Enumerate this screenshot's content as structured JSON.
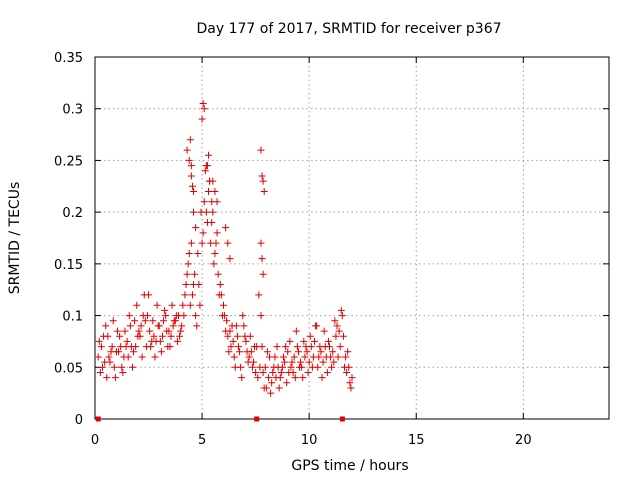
{
  "chart_data": {
    "type": "scatter",
    "title": "Day 177 of 2017, SRMTID for receiver p367",
    "xlabel": "GPS time / hours",
    "ylabel": "SRMTID / TECUs",
    "xlim": [
      0,
      24
    ],
    "ylim": [
      0,
      0.35
    ],
    "xticks": [
      0,
      5,
      10,
      15,
      20
    ],
    "xtick_labels": [
      "0",
      "5",
      "10",
      "15",
      "20"
    ],
    "yticks": [
      0,
      0.05,
      0.1,
      0.15,
      0.2,
      0.25,
      0.3,
      0.35
    ],
    "ytick_labels": [
      "0",
      "0.05",
      "0.1",
      "0.15",
      "0.2",
      "0.25",
      "0.3",
      "0.35"
    ],
    "grid": true,
    "marker": "+",
    "series": [
      {
        "name": "SRMTID",
        "color": "#e00000",
        "x": [
          0.15,
          0.3,
          0.45,
          0.6,
          0.75,
          0.9,
          1.05,
          1.2,
          1.35,
          1.5,
          1.65,
          1.8,
          1.95,
          2.1,
          2.25,
          2.4,
          2.55,
          2.7,
          2.85,
          3.0,
          3.15,
          3.3,
          3.45,
          3.6,
          3.75,
          3.9,
          4.05,
          4.2,
          4.35,
          4.5,
          4.65,
          4.8,
          4.95,
          5.1,
          5.25,
          5.4,
          5.55,
          5.7,
          5.85,
          6.0,
          6.15,
          6.3,
          6.45,
          6.6,
          6.75,
          6.9,
          7.05,
          7.2,
          7.35,
          7.5,
          7.65,
          7.8,
          7.95,
          8.1,
          8.25,
          8.4,
          8.55,
          8.7,
          8.85,
          9.0,
          9.15,
          9.3,
          9.45,
          9.6,
          9.75,
          9.9,
          10.05,
          10.2,
          10.35,
          10.5,
          10.65,
          10.8,
          10.95,
          11.1,
          11.25,
          11.4,
          11.55,
          11.7,
          11.85,
          12.0,
          0.2,
          0.35,
          0.5,
          0.65,
          0.8,
          0.95,
          1.1,
          1.25,
          1.4,
          1.55,
          1.7,
          1.85,
          2.0,
          2.15,
          2.3,
          2.45,
          2.6,
          2.75,
          2.9,
          3.05,
          3.2,
          3.35,
          3.5,
          3.65,
          3.8,
          3.95,
          4.1,
          4.25,
          4.4,
          4.55,
          4.7,
          4.85,
          5.0,
          5.15,
          5.3,
          5.45,
          5.6,
          5.75,
          5.9,
          6.05,
          6.2,
          6.35,
          6.5,
          6.65,
          6.8,
          6.95,
          7.1,
          7.25,
          7.4,
          7.55,
          7.7,
          7.85,
          8.0,
          8.15,
          8.3,
          8.45,
          8.6,
          8.75,
          8.9,
          9.05,
          9.2,
          9.35,
          9.5,
          9.65,
          9.8,
          9.95,
          10.1,
          10.25,
          10.4,
          10.55,
          10.7,
          10.85,
          11.0,
          11.15,
          11.3,
          11.45,
          11.6,
          11.75,
          11.9,
          0.25,
          0.4,
          0.55,
          0.7,
          0.85,
          1.0,
          1.15,
          1.3,
          1.45,
          1.6,
          1.75,
          1.9,
          2.05,
          2.2,
          2.35,
          2.5,
          2.65,
          2.8,
          2.95,
          3.1,
          3.25,
          3.4,
          3.55,
          3.7,
          3.85,
          4.0,
          4.15,
          4.3,
          4.45,
          4.6,
          4.75,
          4.9,
          5.05,
          5.2,
          5.35,
          5.5,
          5.65,
          5.8,
          5.95,
          6.1,
          6.25,
          6.4,
          6.55,
          6.7,
          6.85,
          7.0,
          7.15,
          7.3,
          7.45,
          7.6,
          7.75,
          7.9,
          8.05,
          8.2,
          8.35,
          8.5,
          8.65,
          8.8,
          8.95,
          9.1,
          9.25,
          9.4,
          9.55,
          9.7,
          9.85,
          10.0,
          10.15,
          10.3,
          10.45,
          10.6,
          10.75,
          10.9,
          11.05,
          11.2,
          11.35,
          11.5,
          11.65,
          11.8,
          11.95,
          4.3,
          4.4,
          4.5,
          4.6,
          5.0,
          5.05,
          5.1,
          5.2,
          5.3,
          5.5,
          5.6,
          5.7,
          7.75,
          7.8,
          7.85,
          7.9,
          7.75,
          7.8,
          7.85,
          4.45,
          4.5,
          4.55,
          5.25,
          5.35,
          5.45,
          6.1,
          6.2,
          6.3,
          4.6,
          4.7
        ],
        "y": [
          0.06,
          0.07,
          0.055,
          0.08,
          0.065,
          0.05,
          0.085,
          0.07,
          0.06,
          0.075,
          0.09,
          0.065,
          0.11,
          0.08,
          0.1,
          0.07,
          0.085,
          0.095,
          0.075,
          0.09,
          0.08,
          0.1,
          0.085,
          0.11,
          0.095,
          0.1,
          0.09,
          0.12,
          0.15,
          0.17,
          0.14,
          0.16,
          0.2,
          0.21,
          0.19,
          0.17,
          0.15,
          0.18,
          0.13,
          0.11,
          0.095,
          0.085,
          0.075,
          0.09,
          0.065,
          0.1,
          0.075,
          0.06,
          0.05,
          0.045,
          0.12,
          0.07,
          0.05,
          0.04,
          0.035,
          0.06,
          0.05,
          0.045,
          0.055,
          0.065,
          0.05,
          0.06,
          0.07,
          0.055,
          0.075,
          0.065,
          0.08,
          0.06,
          0.09,
          0.07,
          0.055,
          0.06,
          0.07,
          0.065,
          0.08,
          0.085,
          0.1,
          0.06,
          0.05,
          0.04,
          0.075,
          0.05,
          0.09,
          0.06,
          0.07,
          0.04,
          0.065,
          0.05,
          0.085,
          0.06,
          0.07,
          0.095,
          0.08,
          0.09,
          0.12,
          0.1,
          0.07,
          0.08,
          0.11,
          0.075,
          0.095,
          0.085,
          0.07,
          0.09,
          0.1,
          0.08,
          0.11,
          0.13,
          0.16,
          0.12,
          0.1,
          0.13,
          0.17,
          0.24,
          0.22,
          0.19,
          0.16,
          0.14,
          0.12,
          0.1,
          0.08,
          0.07,
          0.06,
          0.08,
          0.05,
          0.09,
          0.065,
          0.08,
          0.055,
          0.07,
          0.05,
          0.045,
          0.03,
          0.06,
          0.045,
          0.04,
          0.03,
          0.05,
          0.07,
          0.045,
          0.055,
          0.04,
          0.065,
          0.05,
          0.06,
          0.045,
          0.07,
          0.075,
          0.05,
          0.065,
          0.085,
          0.045,
          0.06,
          0.055,
          0.09,
          0.07,
          0.08,
          0.045,
          0.035,
          0.045,
          0.08,
          0.04,
          0.055,
          0.095,
          0.065,
          0.08,
          0.045,
          0.07,
          0.1,
          0.05,
          0.07,
          0.085,
          0.06,
          0.095,
          0.12,
          0.075,
          0.06,
          0.09,
          0.065,
          0.105,
          0.07,
          0.08,
          0.095,
          0.075,
          0.085,
          0.1,
          0.14,
          0.11,
          0.13,
          0.09,
          0.11,
          0.18,
          0.2,
          0.23,
          0.2,
          0.17,
          0.12,
          0.1,
          0.085,
          0.065,
          0.09,
          0.05,
          0.07,
          0.04,
          0.08,
          0.055,
          0.065,
          0.07,
          0.04,
          0.1,
          0.03,
          0.065,
          0.025,
          0.05,
          0.07,
          0.04,
          0.06,
          0.035,
          0.075,
          0.045,
          0.085,
          0.05,
          0.04,
          0.07,
          0.055,
          0.05,
          0.09,
          0.06,
          0.04,
          0.07,
          0.075,
          0.05,
          0.095,
          0.06,
          0.105,
          0.05,
          0.065,
          0.03,
          0.26,
          0.25,
          0.235,
          0.22,
          0.29,
          0.305,
          0.3,
          0.245,
          0.255,
          0.23,
          0.22,
          0.21,
          0.26,
          0.235,
          0.23,
          0.22,
          0.17,
          0.155,
          0.14,
          0.27,
          0.245,
          0.225,
          0.245,
          0.23,
          0.21,
          0.185,
          0.17,
          0.155,
          0.2,
          0.185
        ]
      }
    ],
    "axis_markers_x": [
      0.15,
      7.55,
      11.55
    ]
  }
}
